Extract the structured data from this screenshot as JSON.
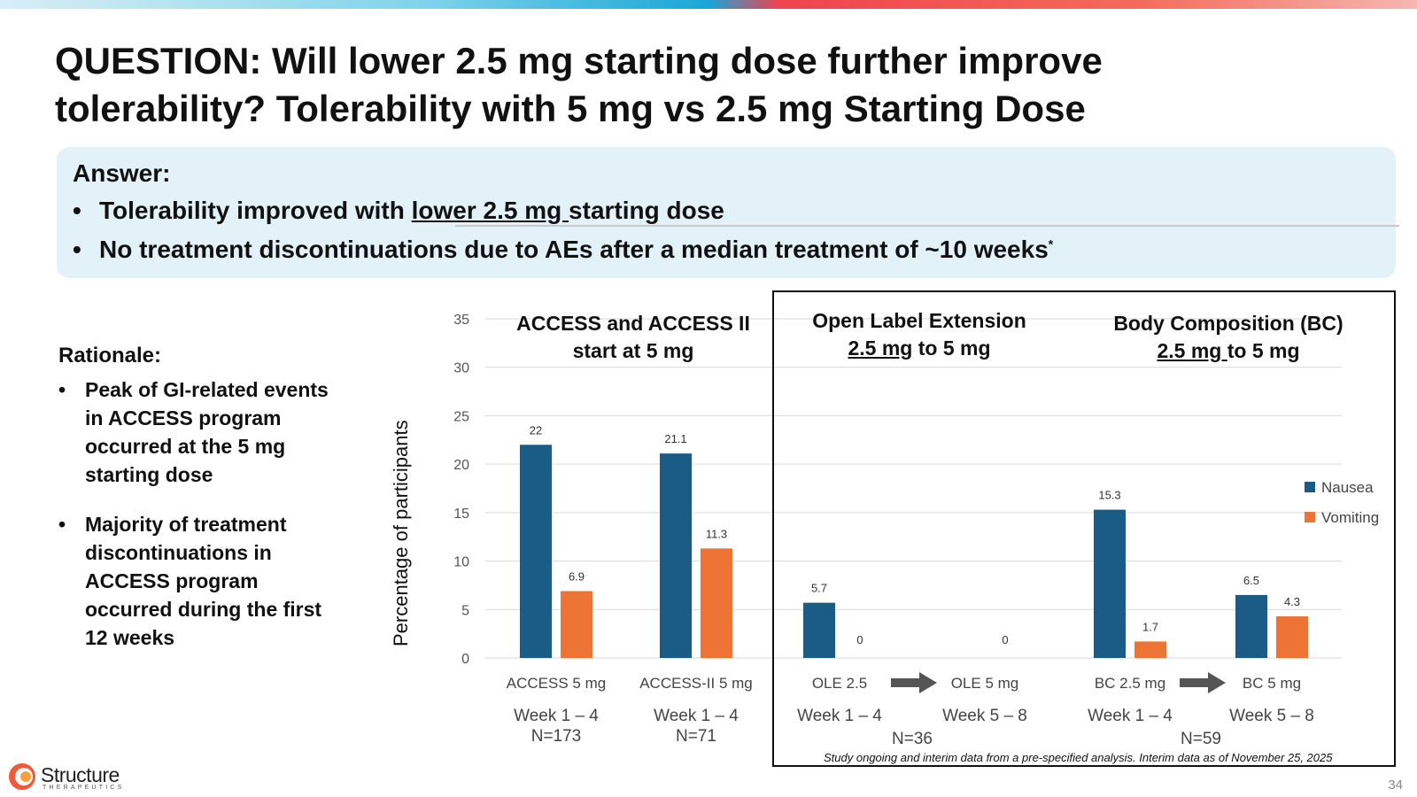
{
  "title": {
    "line1": "QUESTION: Will lower 2.5 mg starting dose further improve",
    "line2": "tolerability? Tolerability with 5 mg vs 2.5 mg Starting Dose"
  },
  "answer": {
    "heading": "Answer:",
    "bullet1_pre": "Tolerability improved with ",
    "bullet1_ul": "lower 2.5 mg ",
    "bullet1_post": "starting dose",
    "bullet2": "No treatment discontinuations due to AEs after a median treatment of ~10 weeks",
    "bullet2_mark": "*"
  },
  "rationale": {
    "heading": "Rationale:",
    "bullets": [
      "Peak of GI-related events in ACCESS program occurred at the 5 mg starting dose",
      "Majority of treatment discontinuations in ACCESS program occurred during the first 12 weeks"
    ]
  },
  "groups": {
    "access": {
      "line1": "ACCESS and ACCESS II",
      "line2": "start at 5 mg"
    },
    "ole": {
      "line1": "Open Label Extension",
      "line2_ul": "2.5 mg",
      "line2_post": " to 5 mg"
    },
    "bc": {
      "line1": "Body Composition (BC)",
      "line2_ul": "2.5 mg ",
      "line2_post": "to 5 mg"
    }
  },
  "period_labels": [
    "Week 1 – 4",
    "Week 1 – 4",
    "Week 1 – 4",
    "Week 5 – 8",
    "Week 1 – 4",
    "Week 5 – 8"
  ],
  "n_labels": [
    {
      "text": "N=173",
      "cat": 0
    },
    {
      "text": "N=71",
      "cat": 1
    },
    {
      "text": "N=36",
      "between": [
        2,
        3
      ]
    },
    {
      "text": "N=59",
      "between": [
        4,
        5
      ]
    }
  ],
  "footnote": "Study ongoing and interim data from a pre-specified analysis. Interim data as of November 25, 2025",
  "logo": {
    "name": "Structure",
    "sub": "THERAPEUTICS"
  },
  "page_number": "34",
  "colors": {
    "nausea": "#1a5c85",
    "vomiting": "#ed7434",
    "arrow": "#555555"
  },
  "chart_data": {
    "type": "bar",
    "categories": [
      "ACCESS 5 mg",
      "ACCESS-II 5 mg",
      "OLE 2.5",
      "OLE 5 mg",
      "BC 2.5 mg",
      "BC 5 mg"
    ],
    "series": [
      {
        "name": "Nausea",
        "values": [
          22,
          21.1,
          5.7,
          0,
          15.3,
          6.5
        ]
      },
      {
        "name": "Vomiting",
        "values": [
          6.9,
          11.3,
          0,
          0,
          1.7,
          4.3
        ]
      }
    ],
    "value_labels": [
      [
        "22",
        "21.1",
        "5.7",
        "",
        "15.3",
        "6.5"
      ],
      [
        "6.9",
        "11.3",
        "0",
        "0",
        "1.7",
        "4.3"
      ]
    ],
    "ylabel": "Percentage of participants",
    "ylim": [
      0,
      35
    ],
    "yticks": [
      0,
      5,
      10,
      15,
      20,
      25,
      30,
      35
    ],
    "grid": true,
    "legend": "right",
    "arrows_between": [
      [
        2,
        3
      ],
      [
        4,
        5
      ]
    ]
  }
}
